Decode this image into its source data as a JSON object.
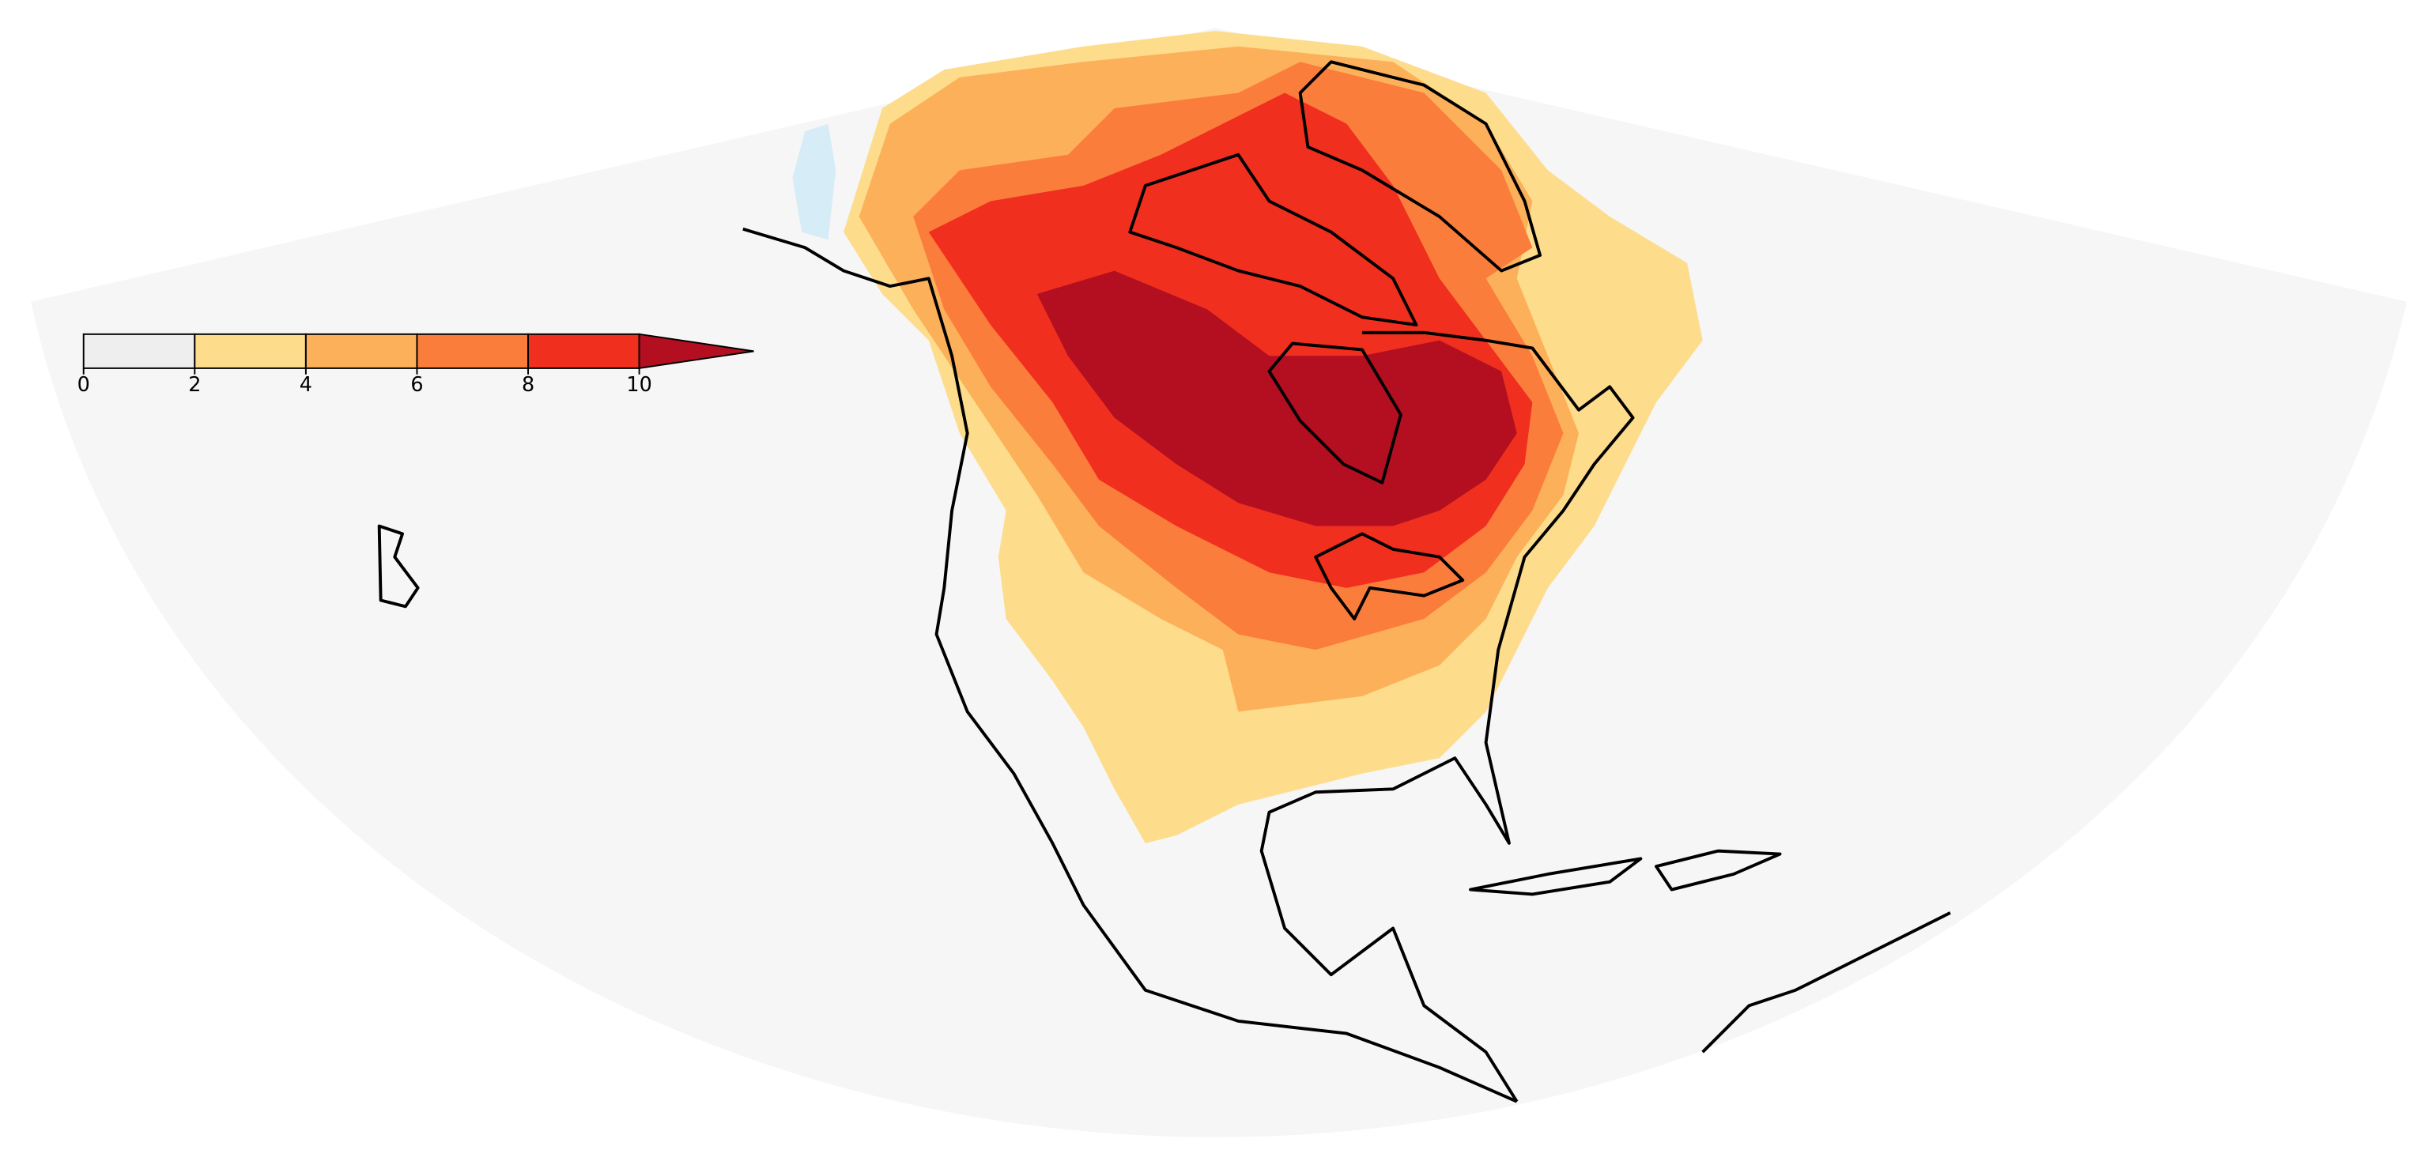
{
  "colorbar": {
    "ticks": [
      0,
      2,
      4,
      6,
      8,
      10
    ],
    "colors": [
      "#eeeeee",
      "#fddc8c",
      "#fdb05a",
      "#fb7d3c",
      "#f02f1e",
      "#b40f20"
    ],
    "extend": "max"
  }
}
